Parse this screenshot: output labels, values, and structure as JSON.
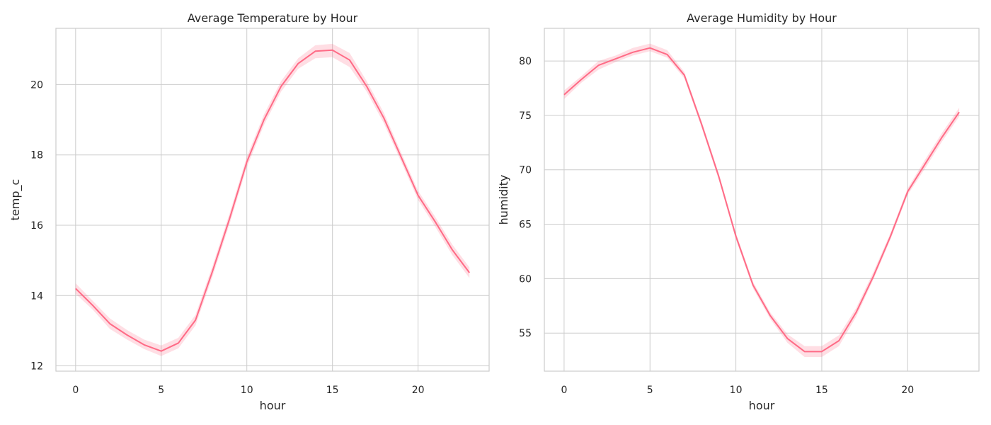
{
  "colors": {
    "line": "#ff6b86",
    "band": "#ff6b86",
    "grid": "#cccccc",
    "spine": "#cccccc",
    "text": "#262626",
    "background": "#ffffff"
  },
  "chart_data": [
    {
      "type": "line",
      "title": "Average Temperature by Hour",
      "xlabel": "hour",
      "ylabel": "temp_c",
      "xlim": [
        -1.15,
        24.15
      ],
      "ylim": [
        11.85,
        21.6
      ],
      "xticks": [
        0,
        5,
        10,
        15,
        20
      ],
      "yticks": [
        12,
        14,
        16,
        18,
        20
      ],
      "grid": true,
      "confidence_band": true,
      "x": [
        0,
        1,
        2,
        3,
        4,
        5,
        6,
        7,
        8,
        9,
        10,
        11,
        12,
        13,
        14,
        15,
        16,
        17,
        18,
        19,
        20,
        21,
        22,
        23
      ],
      "series": [
        {
          "values": [
            14.2,
            13.72,
            13.2,
            12.88,
            12.6,
            12.42,
            12.65,
            13.3,
            14.7,
            16.2,
            17.8,
            19.0,
            19.95,
            20.6,
            20.95,
            20.98,
            20.7,
            19.95,
            19.05,
            17.95,
            16.85,
            16.1,
            15.3,
            14.65
          ],
          "lower": [
            14.05,
            13.6,
            13.05,
            12.75,
            12.48,
            12.28,
            12.5,
            13.15,
            14.55,
            16.05,
            17.65,
            18.85,
            19.8,
            20.45,
            20.75,
            20.78,
            20.5,
            19.8,
            18.9,
            17.82,
            16.72,
            15.96,
            15.15,
            14.5
          ],
          "upper": [
            14.35,
            13.85,
            13.35,
            13.02,
            12.75,
            12.58,
            12.8,
            13.45,
            14.85,
            16.35,
            17.95,
            19.15,
            20.1,
            20.75,
            21.12,
            21.16,
            20.9,
            20.1,
            19.2,
            18.08,
            16.98,
            16.24,
            15.45,
            14.8
          ]
        }
      ]
    },
    {
      "type": "line",
      "title": "Average Humidity by Hour",
      "xlabel": "hour",
      "ylabel": "humidity",
      "xlim": [
        -1.15,
        24.15
      ],
      "ylim": [
        51.5,
        83.0
      ],
      "xticks": [
        0,
        5,
        10,
        15,
        20
      ],
      "yticks": [
        55,
        60,
        65,
        70,
        75,
        80
      ],
      "grid": true,
      "confidence_band": true,
      "x": [
        0,
        1,
        2,
        3,
        4,
        5,
        6,
        7,
        8,
        9,
        10,
        11,
        12,
        13,
        14,
        15,
        16,
        17,
        18,
        19,
        20,
        21,
        22,
        23
      ],
      "series": [
        {
          "values": [
            76.9,
            78.3,
            79.6,
            80.2,
            80.8,
            81.2,
            80.6,
            78.7,
            74.2,
            69.4,
            63.9,
            59.4,
            56.6,
            54.5,
            53.3,
            53.3,
            54.3,
            56.9,
            60.2,
            63.9,
            68.0,
            70.5,
            73.0,
            75.3
          ],
          "lower": [
            76.5,
            78.0,
            79.2,
            79.9,
            80.5,
            80.9,
            80.3,
            78.4,
            73.9,
            69.1,
            63.6,
            59.1,
            56.3,
            54.1,
            52.8,
            52.8,
            53.8,
            56.5,
            59.9,
            63.6,
            67.7,
            70.1,
            72.6,
            74.9
          ],
          "upper": [
            77.3,
            78.6,
            80.0,
            80.5,
            81.2,
            81.6,
            81.0,
            79.0,
            74.5,
            69.7,
            64.2,
            59.7,
            56.9,
            54.9,
            53.8,
            53.8,
            54.8,
            57.3,
            60.6,
            64.2,
            68.3,
            70.9,
            73.4,
            75.7
          ]
        }
      ]
    }
  ]
}
